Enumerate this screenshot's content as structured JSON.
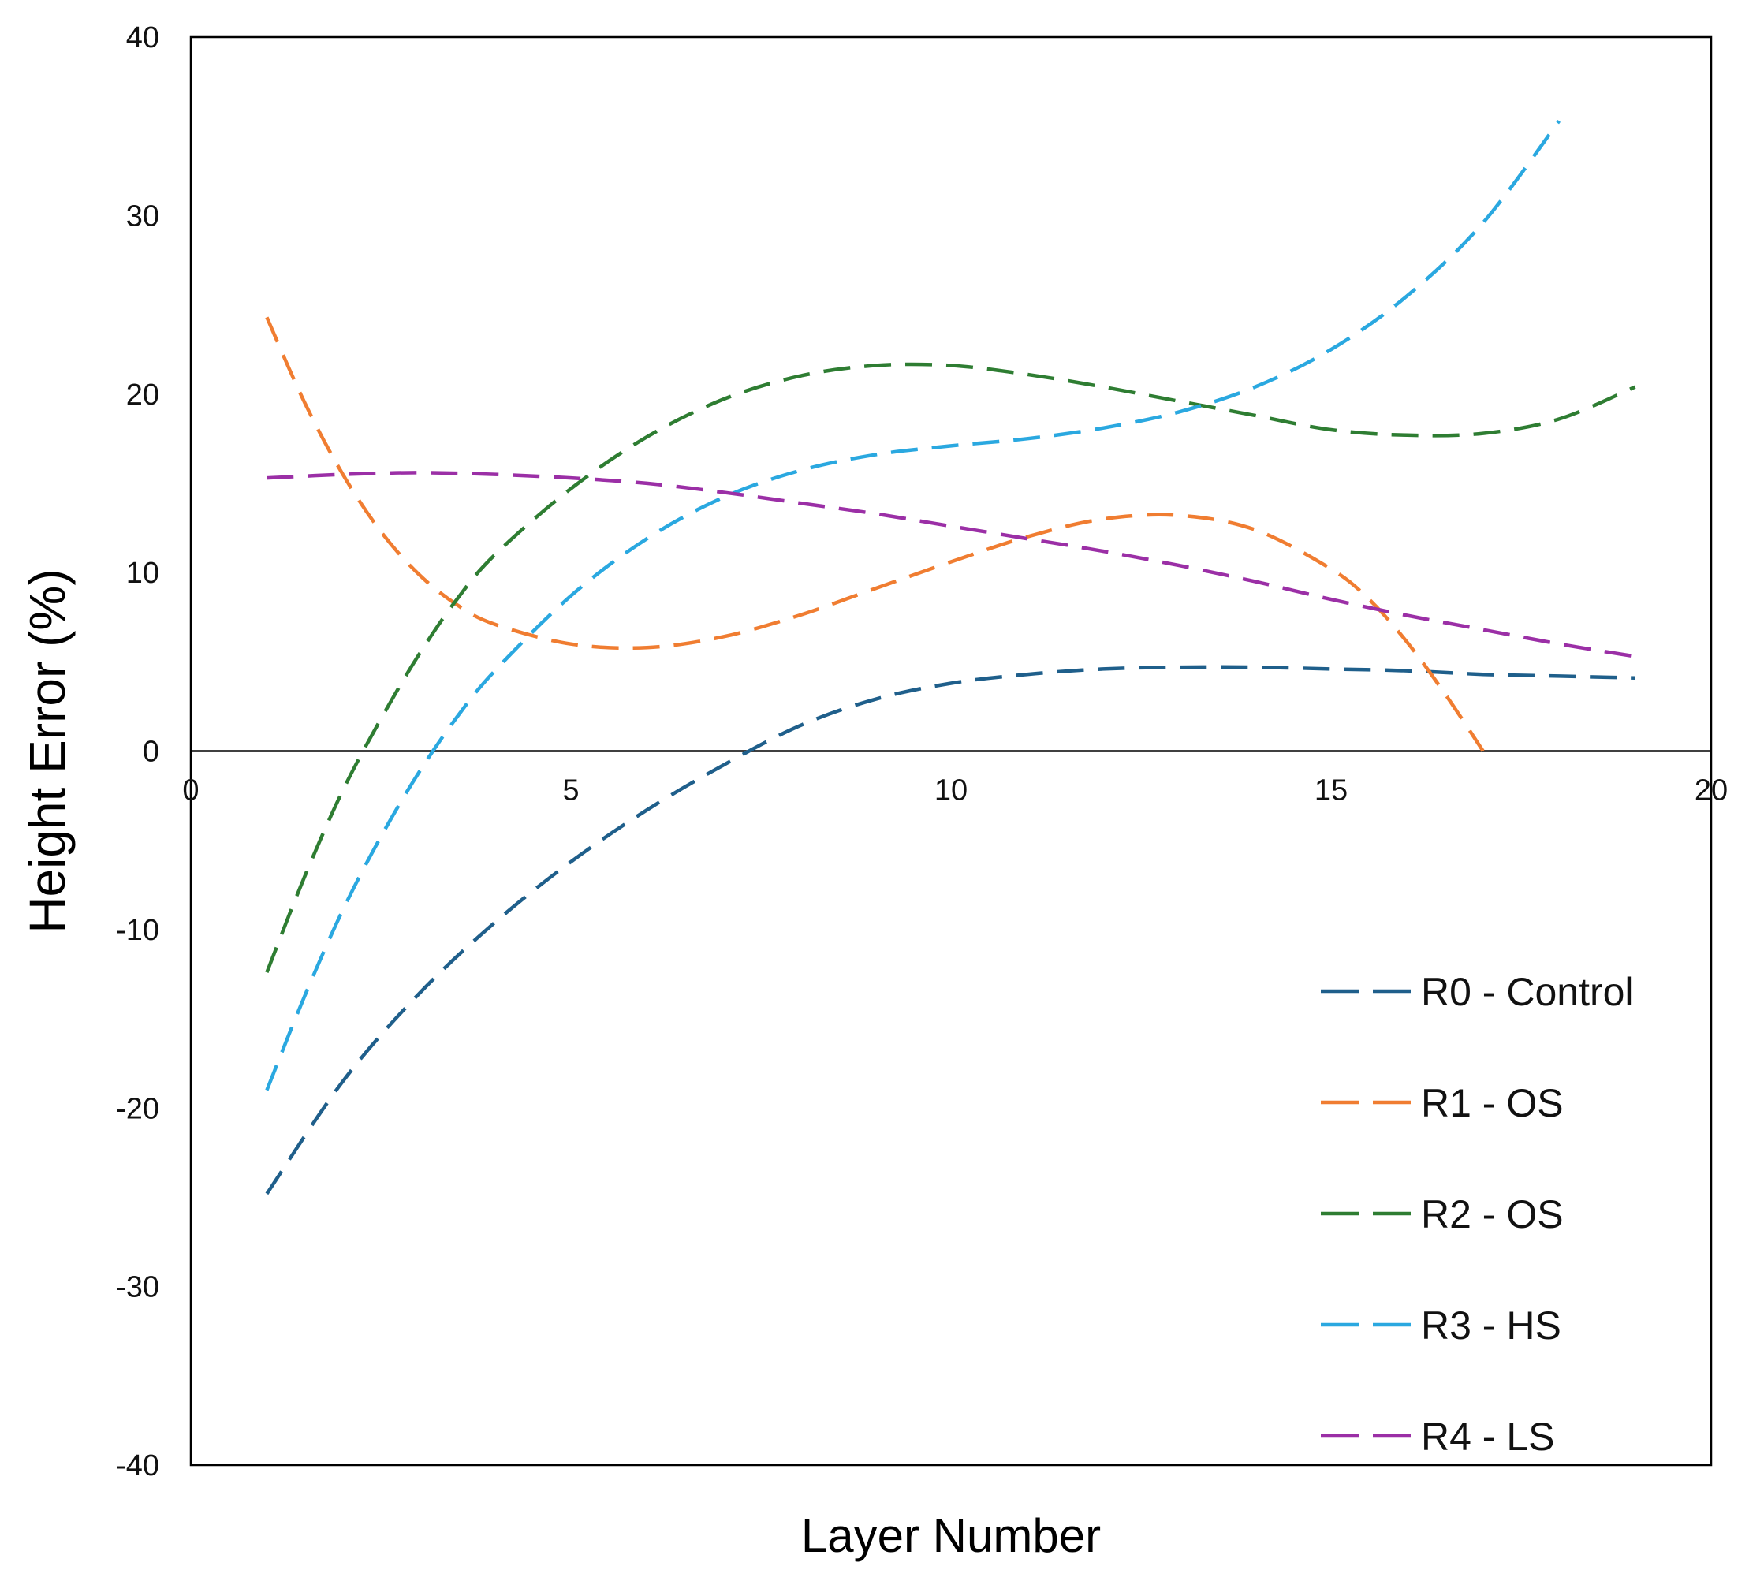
{
  "chart_data": {
    "type": "line",
    "xlabel": "Layer Number",
    "ylabel": "Height Error (%)",
    "xlim": [
      0,
      20
    ],
    "ylim": [
      -40,
      40
    ],
    "xticks": [
      0,
      5,
      10,
      15,
      20
    ],
    "yticks": [
      40,
      30,
      20,
      10,
      0,
      -10,
      -20,
      -30,
      -40
    ],
    "grid": false,
    "legend_position": "bottom-right",
    "line_style": "dashed",
    "series": [
      {
        "name": "R0 - Control",
        "color": "#1f5f8b",
        "x": [
          1,
          2,
          3,
          4,
          5,
          6,
          7,
          8,
          9,
          10,
          11,
          12,
          13,
          14,
          15,
          16,
          17,
          18,
          19
        ],
        "y": [
          -24.8,
          -18.5,
          -13.6,
          -9.6,
          -6.2,
          -3.3,
          -0.8,
          1.4,
          2.9,
          3.8,
          4.3,
          4.6,
          4.7,
          4.7,
          4.6,
          4.5,
          4.3,
          4.2,
          4.1
        ]
      },
      {
        "name": "R1 - OS",
        "color": "#f07d31",
        "x": [
          1,
          1.5,
          2,
          2.5,
          3,
          3.5,
          4,
          5,
          6,
          7,
          8,
          9,
          10,
          11,
          12,
          13,
          14,
          15,
          15.5,
          16,
          16.5,
          17
        ],
        "y": [
          24.3,
          19.5,
          15.5,
          12.3,
          9.9,
          8.2,
          7.1,
          6.0,
          5.8,
          6.4,
          7.6,
          9.1,
          10.6,
          12.0,
          13.0,
          13.2,
          12.4,
          10.2,
          8.5,
          6.1,
          3.2,
          0
        ]
      },
      {
        "name": "R2 - OS",
        "color": "#2e7d32",
        "x": [
          1,
          1.5,
          2,
          2.5,
          3,
          3.5,
          4,
          5,
          6,
          7,
          8,
          9,
          10,
          11,
          12,
          13,
          14,
          15,
          16,
          17,
          18,
          19
        ],
        "y": [
          -12.4,
          -7.0,
          -2.2,
          1.8,
          5.4,
          8.5,
          11.0,
          14.7,
          17.6,
          19.7,
          21.0,
          21.6,
          21.6,
          21.1,
          20.4,
          19.6,
          18.8,
          18.0,
          17.7,
          17.8,
          18.6,
          20.4
        ]
      },
      {
        "name": "R3 - HS",
        "color": "#2aa8e0",
        "x": [
          1,
          1.5,
          2,
          2.5,
          3,
          3.5,
          4,
          5,
          6,
          7,
          8,
          9,
          10,
          11,
          12,
          13,
          14,
          15,
          16,
          17,
          18
        ],
        "y": [
          -19.0,
          -13.7,
          -8.9,
          -4.8,
          -1.2,
          1.9,
          4.5,
          8.7,
          11.9,
          14.2,
          15.7,
          16.6,
          17.1,
          17.5,
          18.1,
          19.0,
          20.4,
          22.5,
          25.5,
          29.6,
          35.3
        ]
      },
      {
        "name": "R4 - LS",
        "color": "#9b2fa6",
        "x": [
          1,
          2,
          3,
          4,
          5,
          6,
          7,
          8,
          9,
          10,
          11,
          12,
          13,
          14,
          15,
          16,
          17,
          18,
          19
        ],
        "y": [
          15.3,
          15.5,
          15.6,
          15.5,
          15.3,
          15.0,
          14.5,
          13.9,
          13.3,
          12.6,
          11.9,
          11.2,
          10.4,
          9.5,
          8.5,
          7.6,
          6.8,
          6.0,
          5.3
        ]
      }
    ]
  }
}
